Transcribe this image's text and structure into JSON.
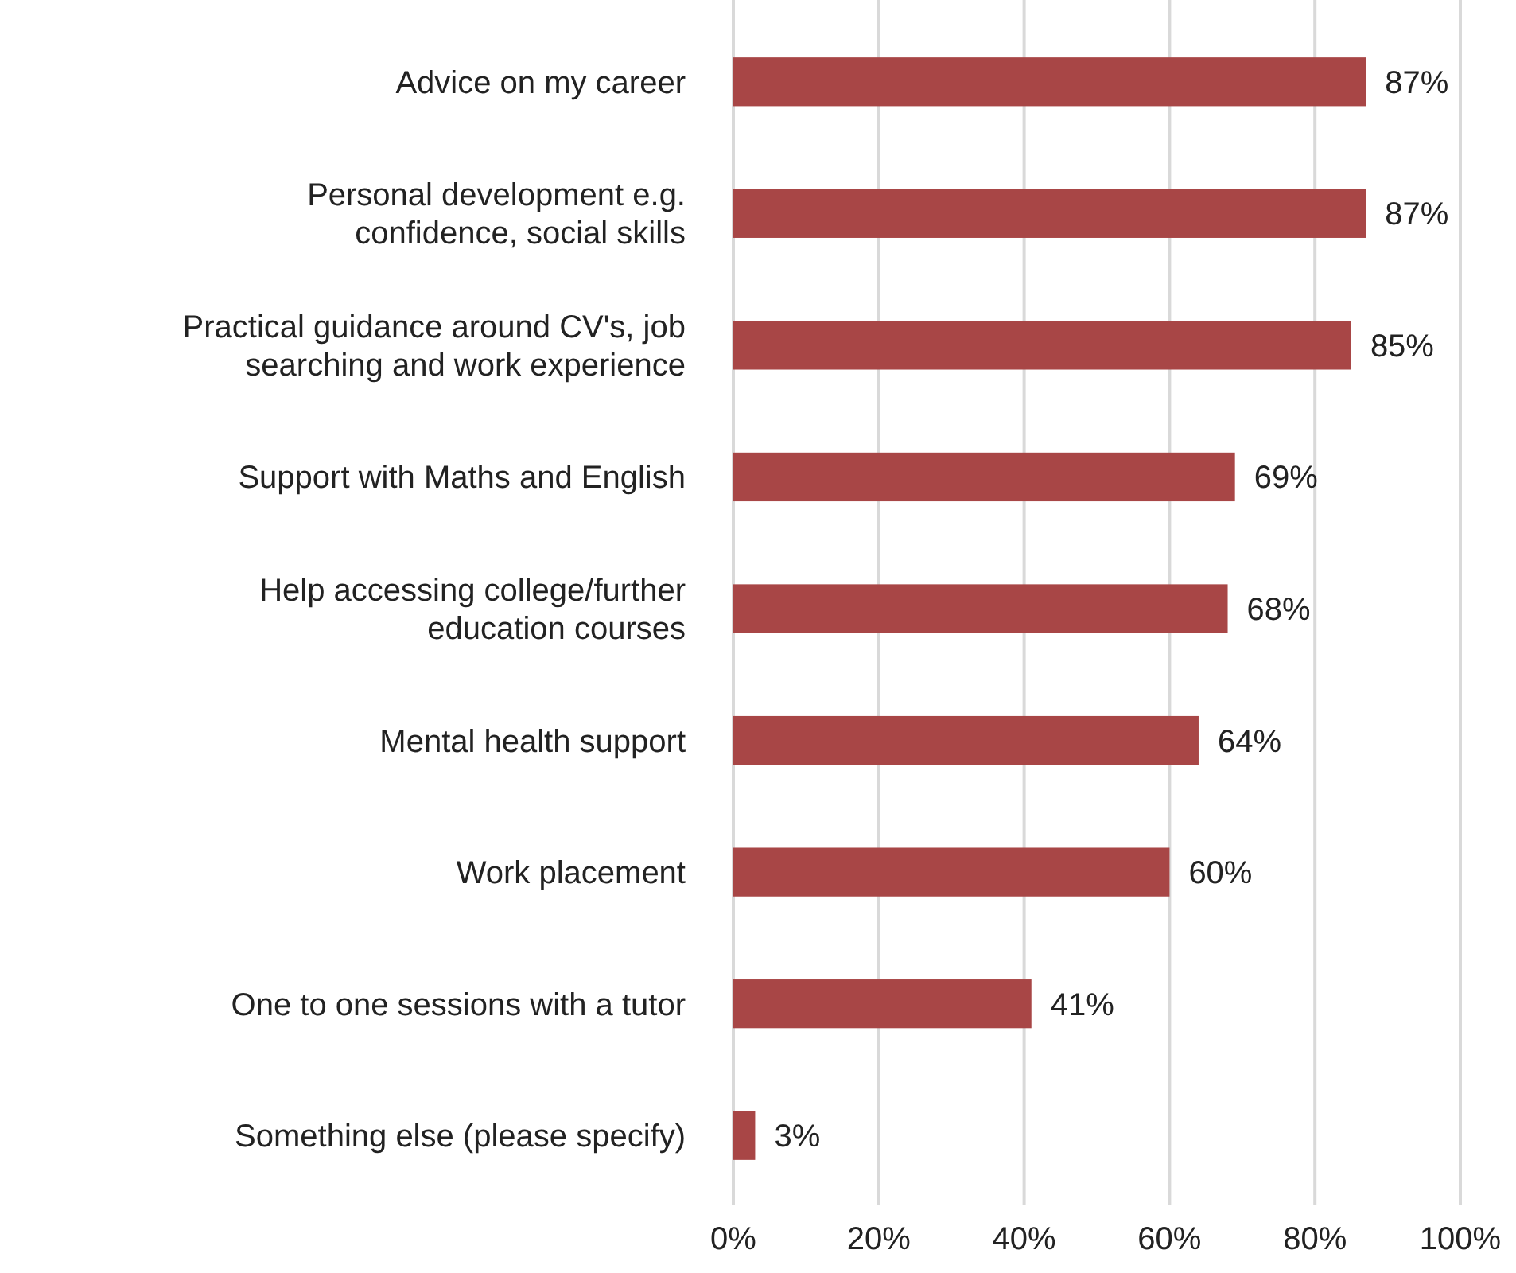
{
  "chart_data": {
    "type": "bar",
    "orientation": "horizontal",
    "categories": [
      "Advice on my career",
      "Personal development e.g.\nconfidence, social skills",
      "Practical guidance around CV's, job\nsearching and work experience",
      "Support with Maths and English",
      "Help accessing college/further\neducation courses",
      "Mental health support",
      "Work placement",
      "One to one sessions with a tutor",
      "Something else (please specify)"
    ],
    "values": [
      87,
      87,
      85,
      69,
      68,
      64,
      60,
      41,
      3
    ],
    "value_labels": [
      "87%",
      "87%",
      "85%",
      "69%",
      "68%",
      "64%",
      "60%",
      "41%",
      "3%"
    ],
    "color": "#a84646",
    "xlim": [
      0,
      100
    ],
    "xticks": [
      {
        "value": 0,
        "label": "0%"
      },
      {
        "value": 20,
        "label": "20%"
      },
      {
        "value": 40,
        "label": "40%"
      },
      {
        "value": 60,
        "label": "60%"
      },
      {
        "value": 80,
        "label": "80%"
      },
      {
        "value": 100,
        "label": "100%"
      }
    ],
    "grid": "x"
  }
}
